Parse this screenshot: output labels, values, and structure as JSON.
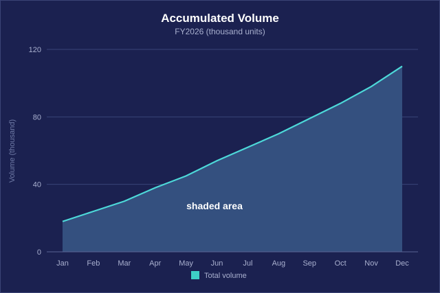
{
  "chart_data": {
    "type": "area",
    "title": "Accumulated Volume",
    "subtitle": "FY2026 (thousand units)",
    "xlabel": "",
    "ylabel": "Volume (thousand)",
    "categories": [
      "Jan",
      "Feb",
      "Mar",
      "Apr",
      "May",
      "Jun",
      "Jul",
      "Aug",
      "Sep",
      "Oct",
      "Nov",
      "Dec"
    ],
    "series": [
      {
        "name": "Total volume",
        "values": [
          18,
          24,
          30,
          38,
          45,
          54,
          62,
          70,
          79,
          88,
          98,
          110
        ]
      }
    ],
    "ylim": [
      0,
      120
    ],
    "yticks": [
      0,
      40,
      80,
      120
    ],
    "grid": true,
    "legend": "bottom",
    "annotation": "shaded area",
    "colors": {
      "line": "#4dd9d9",
      "fill": "#34507f",
      "legend_swatch": "#3ecfc6",
      "background": "#1b2150"
    }
  }
}
